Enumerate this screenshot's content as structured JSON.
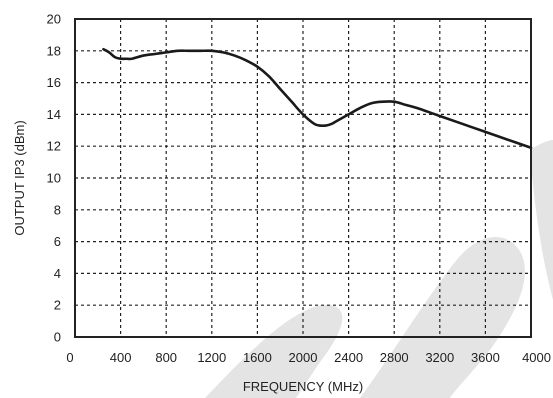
{
  "chart_data": {
    "type": "line",
    "xlabel": "FREQUENCY (MHz)",
    "ylabel": "OUTPUT IP3 (dBm)",
    "xlim": [
      0,
      4000
    ],
    "ylim": [
      0,
      20
    ],
    "x_ticks": [
      0,
      400,
      800,
      1200,
      1600,
      2000,
      2400,
      2800,
      3200,
      3600,
      4000
    ],
    "y_ticks": [
      0,
      2,
      4,
      6,
      8,
      10,
      12,
      14,
      16,
      18,
      20
    ],
    "grid": true,
    "series": [
      {
        "x": [
          250,
          300,
          350,
          400,
          450,
          500,
          600,
          700,
          800,
          900,
          1000,
          1100,
          1200,
          1300,
          1400,
          1500,
          1600,
          1700,
          1800,
          1900,
          2000,
          2100,
          2150,
          2200,
          2250,
          2300,
          2400,
          2500,
          2600,
          2700,
          2800,
          2900,
          3000,
          3200,
          3400,
          3600,
          3800,
          4000
        ],
        "y": [
          18.1,
          17.9,
          17.6,
          17.5,
          17.5,
          17.5,
          17.7,
          17.8,
          17.9,
          18.0,
          18.0,
          18.0,
          18.0,
          17.9,
          17.7,
          17.4,
          17.0,
          16.4,
          15.6,
          14.8,
          14.0,
          13.4,
          13.3,
          13.3,
          13.4,
          13.6,
          14.0,
          14.4,
          14.7,
          14.8,
          14.8,
          14.6,
          14.4,
          13.9,
          13.4,
          12.9,
          12.4,
          11.9
        ]
      }
    ],
    "line_color": "#1a1a1a",
    "watermark_color": "#e4e4e4"
  }
}
